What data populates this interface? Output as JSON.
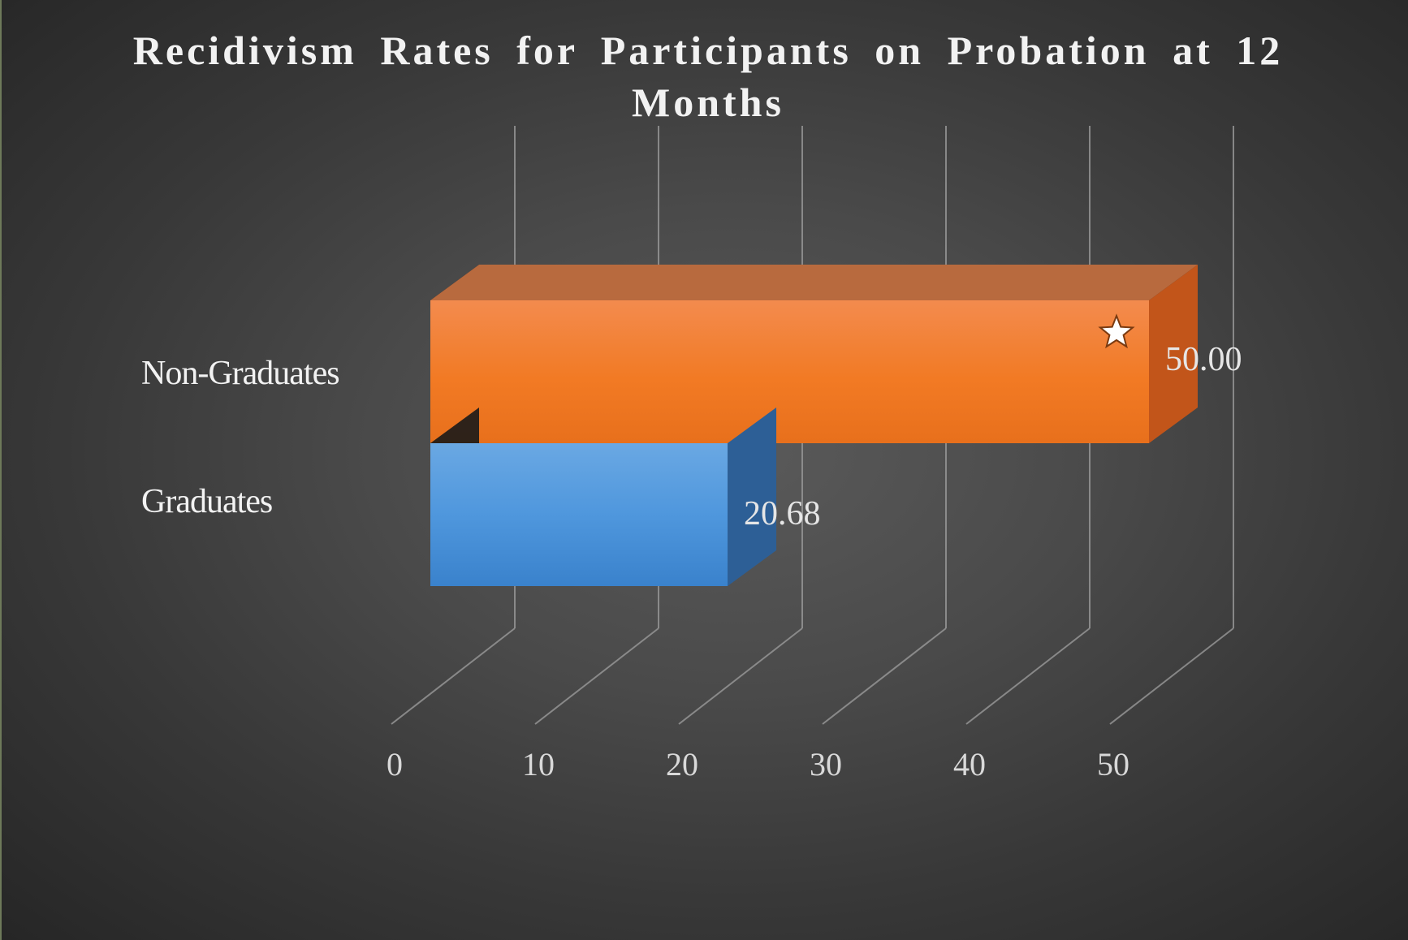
{
  "chart_data": {
    "type": "bar",
    "orientation": "horizontal",
    "style": "3d",
    "title": "Recidivism  Rates for Participants on Probation at 12 Months",
    "categories": [
      "Non-Graduates",
      "Graduates"
    ],
    "values": [
      50.0,
      20.68
    ],
    "data_labels": [
      "50.00",
      "20.68"
    ],
    "colors": [
      "#ef7b22",
      "#4a90d9"
    ],
    "xlim": [
      0,
      50
    ],
    "xticks": [
      "0",
      "10",
      "20",
      "30",
      "40",
      "50"
    ],
    "grid": true,
    "legend": "none",
    "xlabel": "",
    "ylabel": "",
    "annotation": "star-icon"
  }
}
